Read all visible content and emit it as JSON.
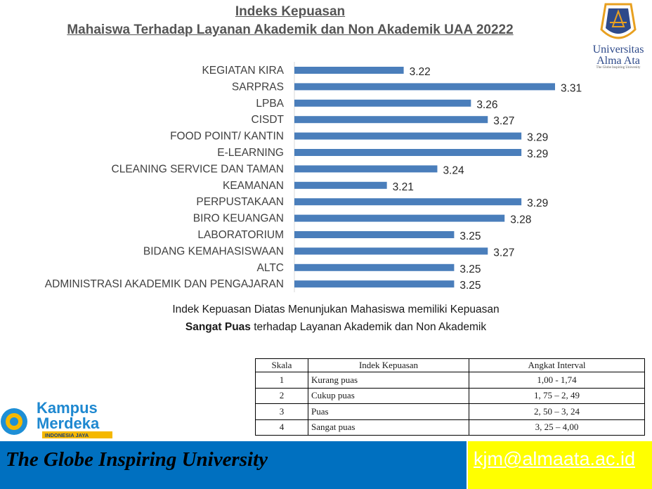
{
  "title": {
    "line1": "Indeks Kepuasan",
    "line2": "Mahaiswa Terhadap Layanan Akademik dan Non Akademik UAA 20222"
  },
  "university": {
    "name_line1": "Universitas",
    "name_line2": "Alma Ata",
    "tagline": "The Globe Inspiring University"
  },
  "colors": {
    "bar": "#4a7ebb",
    "footer_blue": "#0070c0",
    "footer_yellow": "#ffff00"
  },
  "chart_data": {
    "type": "bar",
    "orientation": "horizontal",
    "categories": [
      "KEGIATAN KIRA",
      "SARPRAS",
      "LPBA",
      "CISDT",
      "FOOD POINT/ KANTIN",
      "E-LEARNING",
      "CLEANING SERVICE DAN TAMAN",
      "KEAMANAN",
      "PERPUSTAKAAN",
      "BIRO KEUANGAN",
      "LABORATORIUM",
      "BIDANG KEMAHASISWAAN",
      "ALTC",
      "ADMINISTRASI AKADEMIK DAN PENGAJARAN"
    ],
    "values": [
      3.22,
      3.31,
      3.26,
      3.27,
      3.29,
      3.29,
      3.24,
      3.21,
      3.29,
      3.28,
      3.25,
      3.27,
      3.25,
      3.25
    ],
    "value_labels": [
      "3.22",
      "3.31",
      "3.26",
      "3.27",
      "3.29",
      "3.29",
      "3.24",
      "3.21",
      "3.29",
      "3.28",
      "3.25",
      "3.27",
      "3.25",
      "3.25"
    ],
    "xlim": [
      3.155,
      3.31
    ],
    "grid": false,
    "legend": "none"
  },
  "note": {
    "line1": "Indek Kepuasan Diatas Menunjukan Mahasiswa memiliki Kepuasan",
    "line2_bold": "Sangat Puas",
    "line2_rest": " terhadap Layanan Akademik dan Non Akademik"
  },
  "scale_table": {
    "headers": [
      "Skala",
      "Indek Kepuasan",
      "Angkat Interval"
    ],
    "rows": [
      [
        "1",
        "Kurang puas",
        "1,00 - 1,74"
      ],
      [
        "2",
        "Cukup puas",
        "1, 75 – 2, 49"
      ],
      [
        "3",
        "Puas",
        "2, 50 – 3, 24"
      ],
      [
        "4",
        "Sangat puas",
        "3, 25 – 4,00"
      ]
    ]
  },
  "kampus_merdeka": {
    "line1": "Kampus",
    "line2": "Merdeka",
    "ribbon": "INDONESIA JAYA"
  },
  "footer": {
    "slogan": "The Globe Inspiring University",
    "email": "kjm@almaata.ac.id"
  }
}
